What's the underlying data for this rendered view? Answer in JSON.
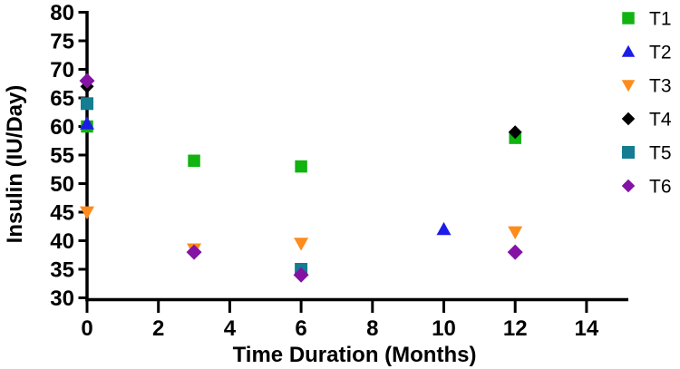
{
  "chart_data": {
    "type": "scatter",
    "title": "",
    "xlabel": "Time Duration (Months)",
    "ylabel": "Insulin (IU/Day)",
    "xlim": [
      0,
      15.2
    ],
    "ylim": [
      30,
      80
    ],
    "x_ticks": [
      0,
      2,
      4,
      6,
      8,
      10,
      12,
      14
    ],
    "y_ticks": [
      30,
      35,
      40,
      45,
      50,
      55,
      60,
      65,
      70,
      75,
      80
    ],
    "grid": false,
    "legend_position": "right",
    "axis_color": "#000000",
    "series": [
      {
        "name": "T1",
        "marker": "square",
        "color": "#10b310",
        "size": 13.5,
        "points": [
          [
            0,
            60
          ],
          [
            3,
            54
          ],
          [
            6,
            53
          ],
          [
            12,
            58
          ]
        ]
      },
      {
        "name": "T2",
        "marker": "triangle-up",
        "color": "#1c1ce8",
        "size": 16,
        "points": [
          [
            0,
            60.5
          ],
          [
            10,
            42
          ]
        ]
      },
      {
        "name": "T3",
        "marker": "triangle-down",
        "color": "#fd8c1c",
        "size": 16,
        "points": [
          [
            0,
            45
          ],
          [
            3,
            38.5
          ],
          [
            6,
            39.5
          ],
          [
            12,
            41.5
          ]
        ]
      },
      {
        "name": "T4",
        "marker": "diamond",
        "color": "#000000",
        "size": 15,
        "points": [
          [
            0,
            67
          ],
          [
            12,
            59
          ]
        ]
      },
      {
        "name": "T5",
        "marker": "square",
        "color": "#147d91",
        "size": 14,
        "points": [
          [
            0,
            64
          ],
          [
            6,
            35
          ]
        ]
      },
      {
        "name": "T6",
        "marker": "diamond",
        "color": "#8312a5",
        "size": 17,
        "points": [
          [
            0,
            68
          ],
          [
            3,
            38
          ],
          [
            6,
            34
          ],
          [
            12,
            38
          ]
        ]
      }
    ]
  }
}
